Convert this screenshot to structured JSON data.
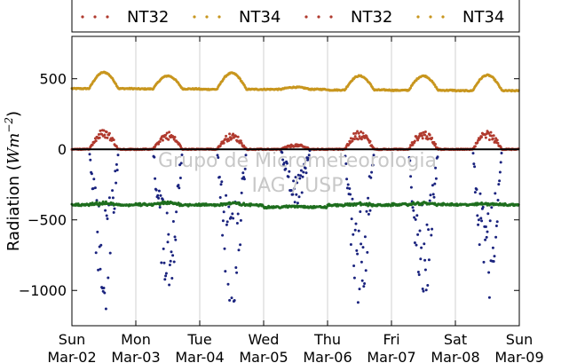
{
  "chart_data": {
    "type": "scatter",
    "ylabel": "Radiation (Wm⁻²)",
    "ylabel_main": "Radiation (",
    "ylabel_unit": "Wm",
    "ylabel_exp": "−2",
    "ylabel_close": ")",
    "ylim": [
      -1250,
      800
    ],
    "xlim": [
      0,
      7
    ],
    "yticks": [
      {
        "value": 500,
        "label": "500"
      },
      {
        "value": 0,
        "label": "0"
      },
      {
        "value": -500,
        "label": "−500"
      },
      {
        "value": -1000,
        "label": "−1000"
      }
    ],
    "xticks": [
      {
        "value": 0,
        "day": "Sun",
        "date": "Mar-02"
      },
      {
        "value": 1,
        "day": "Mon",
        "date": "Mar-03"
      },
      {
        "value": 2,
        "day": "Tue",
        "date": "Mar-04"
      },
      {
        "value": 3,
        "day": "Wed",
        "date": "Mar-05"
      },
      {
        "value": 4,
        "day": "Thu",
        "date": "Mar-06"
      },
      {
        "value": 5,
        "day": "Fri",
        "date": "Mar-07"
      },
      {
        "value": 6,
        "day": "Sat",
        "date": "Mar-08"
      },
      {
        "value": 7,
        "day": "Sun",
        "date": "Mar-09"
      }
    ],
    "grid": "vertical",
    "legend_position": "top",
    "legend": [
      {
        "name": "NT32",
        "color": "#b03a2e"
      },
      {
        "name": "NT34",
        "color": "#c8961e"
      },
      {
        "name": "NT32",
        "color": "#b03a2e"
      },
      {
        "name": "NT34",
        "color": "#c8961e"
      }
    ],
    "zero_line": true,
    "series": [
      {
        "color": "#c8961e",
        "marker": "point",
        "days": [
          {
            "base": 430,
            "peak": 545
          },
          {
            "base": 428,
            "peak": 520
          },
          {
            "base": 425,
            "peak": 540
          },
          {
            "base": 425,
            "peak": 440
          },
          {
            "base": 420,
            "peak": 520
          },
          {
            "base": 418,
            "peak": 520
          },
          {
            "base": 415,
            "peak": 525
          }
        ]
      },
      {
        "color": "#b03a2e",
        "marker": "point",
        "days": [
          {
            "base": 0,
            "peak": 145
          },
          {
            "base": 0,
            "peak": 125
          },
          {
            "base": 0,
            "peak": 115
          },
          {
            "base": 0,
            "peak": 35
          },
          {
            "base": 0,
            "peak": 135
          },
          {
            "base": 0,
            "peak": 135
          },
          {
            "base": 0,
            "peak": 130
          }
        ]
      },
      {
        "color": "#1a237e",
        "marker": "point",
        "days": [
          {
            "base": 0,
            "peak": -1170
          },
          {
            "base": 0,
            "peak": -1050
          },
          {
            "base": 0,
            "peak": -1130
          },
          {
            "base": 0,
            "peak": -400
          },
          {
            "base": 0,
            "peak": -1120
          },
          {
            "base": 0,
            "peak": -1090
          },
          {
            "base": 0,
            "peak": -1120
          }
        ]
      },
      {
        "color": "#1e6e1e",
        "marker": "point",
        "days": [
          {
            "base": -405,
            "peak": -375
          },
          {
            "base": -405,
            "peak": -370
          },
          {
            "base": -405,
            "peak": -375
          },
          {
            "base": -415,
            "peak": -400
          },
          {
            "base": -405,
            "peak": -380
          },
          {
            "base": -400,
            "peak": -375
          },
          {
            "base": -400,
            "peak": -380
          }
        ]
      }
    ],
    "annotations": [
      "Grupo de Micrometeorologia",
      "IAG / USP"
    ]
  }
}
